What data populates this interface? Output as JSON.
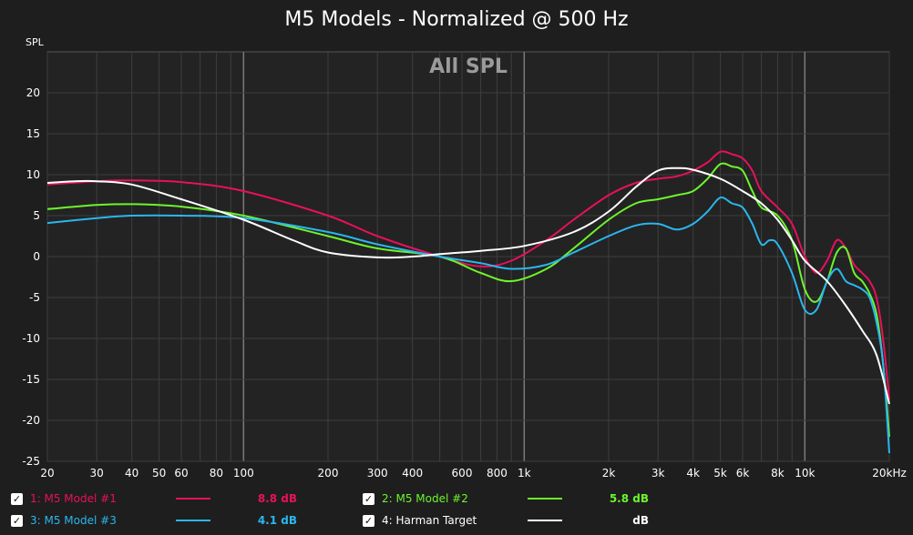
{
  "chart_data": {
    "type": "line",
    "title": "M5 Models - Normalized @ 500 Hz",
    "watermark": "All SPL",
    "ylabel": "SPL",
    "xscale": "log",
    "xlim": [
      20,
      20000
    ],
    "ylim": [
      -25,
      25
    ],
    "grid": true,
    "x_ticks": [
      {
        "value": 20,
        "label": "20"
      },
      {
        "value": 30,
        "label": "30"
      },
      {
        "value": 40,
        "label": "40"
      },
      {
        "value": 50,
        "label": "50"
      },
      {
        "value": 60,
        "label": "60"
      },
      {
        "value": 80,
        "label": "80"
      },
      {
        "value": 100,
        "label": "100"
      },
      {
        "value": 200,
        "label": "200"
      },
      {
        "value": 300,
        "label": "300"
      },
      {
        "value": 400,
        "label": "400"
      },
      {
        "value": 600,
        "label": "600"
      },
      {
        "value": 800,
        "label": "800"
      },
      {
        "value": 1000,
        "label": "1k"
      },
      {
        "value": 2000,
        "label": "2k"
      },
      {
        "value": 3000,
        "label": "3k"
      },
      {
        "value": 4000,
        "label": "4k"
      },
      {
        "value": 5000,
        "label": "5k"
      },
      {
        "value": 6000,
        "label": "6k"
      },
      {
        "value": 8000,
        "label": "8k"
      },
      {
        "value": 10000,
        "label": "10k"
      },
      {
        "value": 20000,
        "label": "20kHz"
      }
    ],
    "y_ticks": [
      20,
      15,
      10,
      5,
      0,
      -5,
      -10,
      -15,
      -20,
      -25
    ],
    "series": [
      {
        "name": "1: M5 Model #1",
        "color": "#e8105c",
        "level": "8.8 dB",
        "x": [
          20,
          30,
          40,
          60,
          100,
          200,
          300,
          500,
          700,
          900,
          1200,
          1500,
          2000,
          2500,
          3000,
          3500,
          4000,
          4500,
          5000,
          5500,
          6000,
          6500,
          7000,
          8000,
          9000,
          10000,
          11000,
          12000,
          13000,
          14000,
          15000,
          16000,
          17000,
          18000,
          19000,
          20000
        ],
        "y": [
          8.8,
          9.2,
          9.3,
          9.1,
          8.0,
          5.0,
          2.5,
          0.0,
          -1.2,
          -0.5,
          2.0,
          4.5,
          7.5,
          9.0,
          9.5,
          9.8,
          10.5,
          11.5,
          12.8,
          12.5,
          12.0,
          10.5,
          8.0,
          6.0,
          4.0,
          0.0,
          -2.0,
          -0.5,
          2.0,
          1.0,
          -1.0,
          -2.0,
          -3.0,
          -5.0,
          -10.0,
          -17.5
        ]
      },
      {
        "name": "2: M5 Model #2",
        "color": "#6cf52c",
        "level": "5.8 dB",
        "x": [
          20,
          30,
          40,
          60,
          100,
          200,
          300,
          500,
          700,
          900,
          1200,
          1500,
          2000,
          2500,
          3000,
          3500,
          4000,
          4500,
          5000,
          5500,
          6000,
          6500,
          7000,
          8000,
          9000,
          10000,
          11000,
          12000,
          13000,
          14000,
          15000,
          16000,
          17000,
          18000,
          19000,
          20000
        ],
        "y": [
          5.8,
          6.3,
          6.4,
          6.1,
          5.0,
          2.5,
          1.0,
          0.0,
          -2.0,
          -3.0,
          -1.5,
          1.0,
          4.5,
          6.5,
          7.0,
          7.5,
          8.0,
          9.5,
          11.3,
          11.0,
          10.5,
          8.0,
          6.0,
          5.0,
          2.0,
          -4.0,
          -5.5,
          -3.0,
          0.5,
          1.0,
          -2.0,
          -3.0,
          -4.5,
          -7.0,
          -13.0,
          -22.0
        ]
      },
      {
        "name": "3: M5 Model #3",
        "color": "#2bb6ee",
        "level": "4.1 dB",
        "x": [
          20,
          30,
          40,
          60,
          100,
          200,
          300,
          500,
          700,
          900,
          1200,
          1500,
          2000,
          2500,
          3000,
          3500,
          4000,
          4500,
          5000,
          5500,
          6000,
          6500,
          7000,
          7500,
          8000,
          9000,
          10000,
          11000,
          12000,
          13000,
          14000,
          15000,
          16000,
          17000,
          18000,
          19000,
          20000
        ],
        "y": [
          4.1,
          4.7,
          5.0,
          5.0,
          4.7,
          3.0,
          1.5,
          0.0,
          -0.8,
          -1.5,
          -1.0,
          0.5,
          2.5,
          3.8,
          4.0,
          3.3,
          4.0,
          5.5,
          7.2,
          6.5,
          6.0,
          4.0,
          1.5,
          2.0,
          1.5,
          -2.0,
          -6.5,
          -6.5,
          -3.0,
          -1.5,
          -3.0,
          -3.5,
          -4.0,
          -5.0,
          -8.0,
          -13.0,
          -24.0
        ]
      },
      {
        "name": "4: Harman Target",
        "color": "#ffffff",
        "level": "dB",
        "x": [
          20,
          25,
          30,
          40,
          60,
          100,
          150,
          200,
          300,
          400,
          500,
          700,
          1000,
          1500,
          2000,
          2500,
          3000,
          3500,
          4000,
          5000,
          6000,
          7000,
          8000,
          9000,
          10000,
          12000,
          14000,
          16000,
          18000,
          20000
        ],
        "y": [
          9.0,
          9.2,
          9.2,
          8.8,
          7.0,
          4.5,
          2.0,
          0.5,
          -0.1,
          0.0,
          0.3,
          0.7,
          1.3,
          3.0,
          5.5,
          8.5,
          10.5,
          10.8,
          10.6,
          9.5,
          8.0,
          6.5,
          4.5,
          2.0,
          -0.5,
          -3.0,
          -6.0,
          -9.0,
          -12.0,
          -18.0
        ]
      }
    ]
  },
  "legend_check": "✓"
}
